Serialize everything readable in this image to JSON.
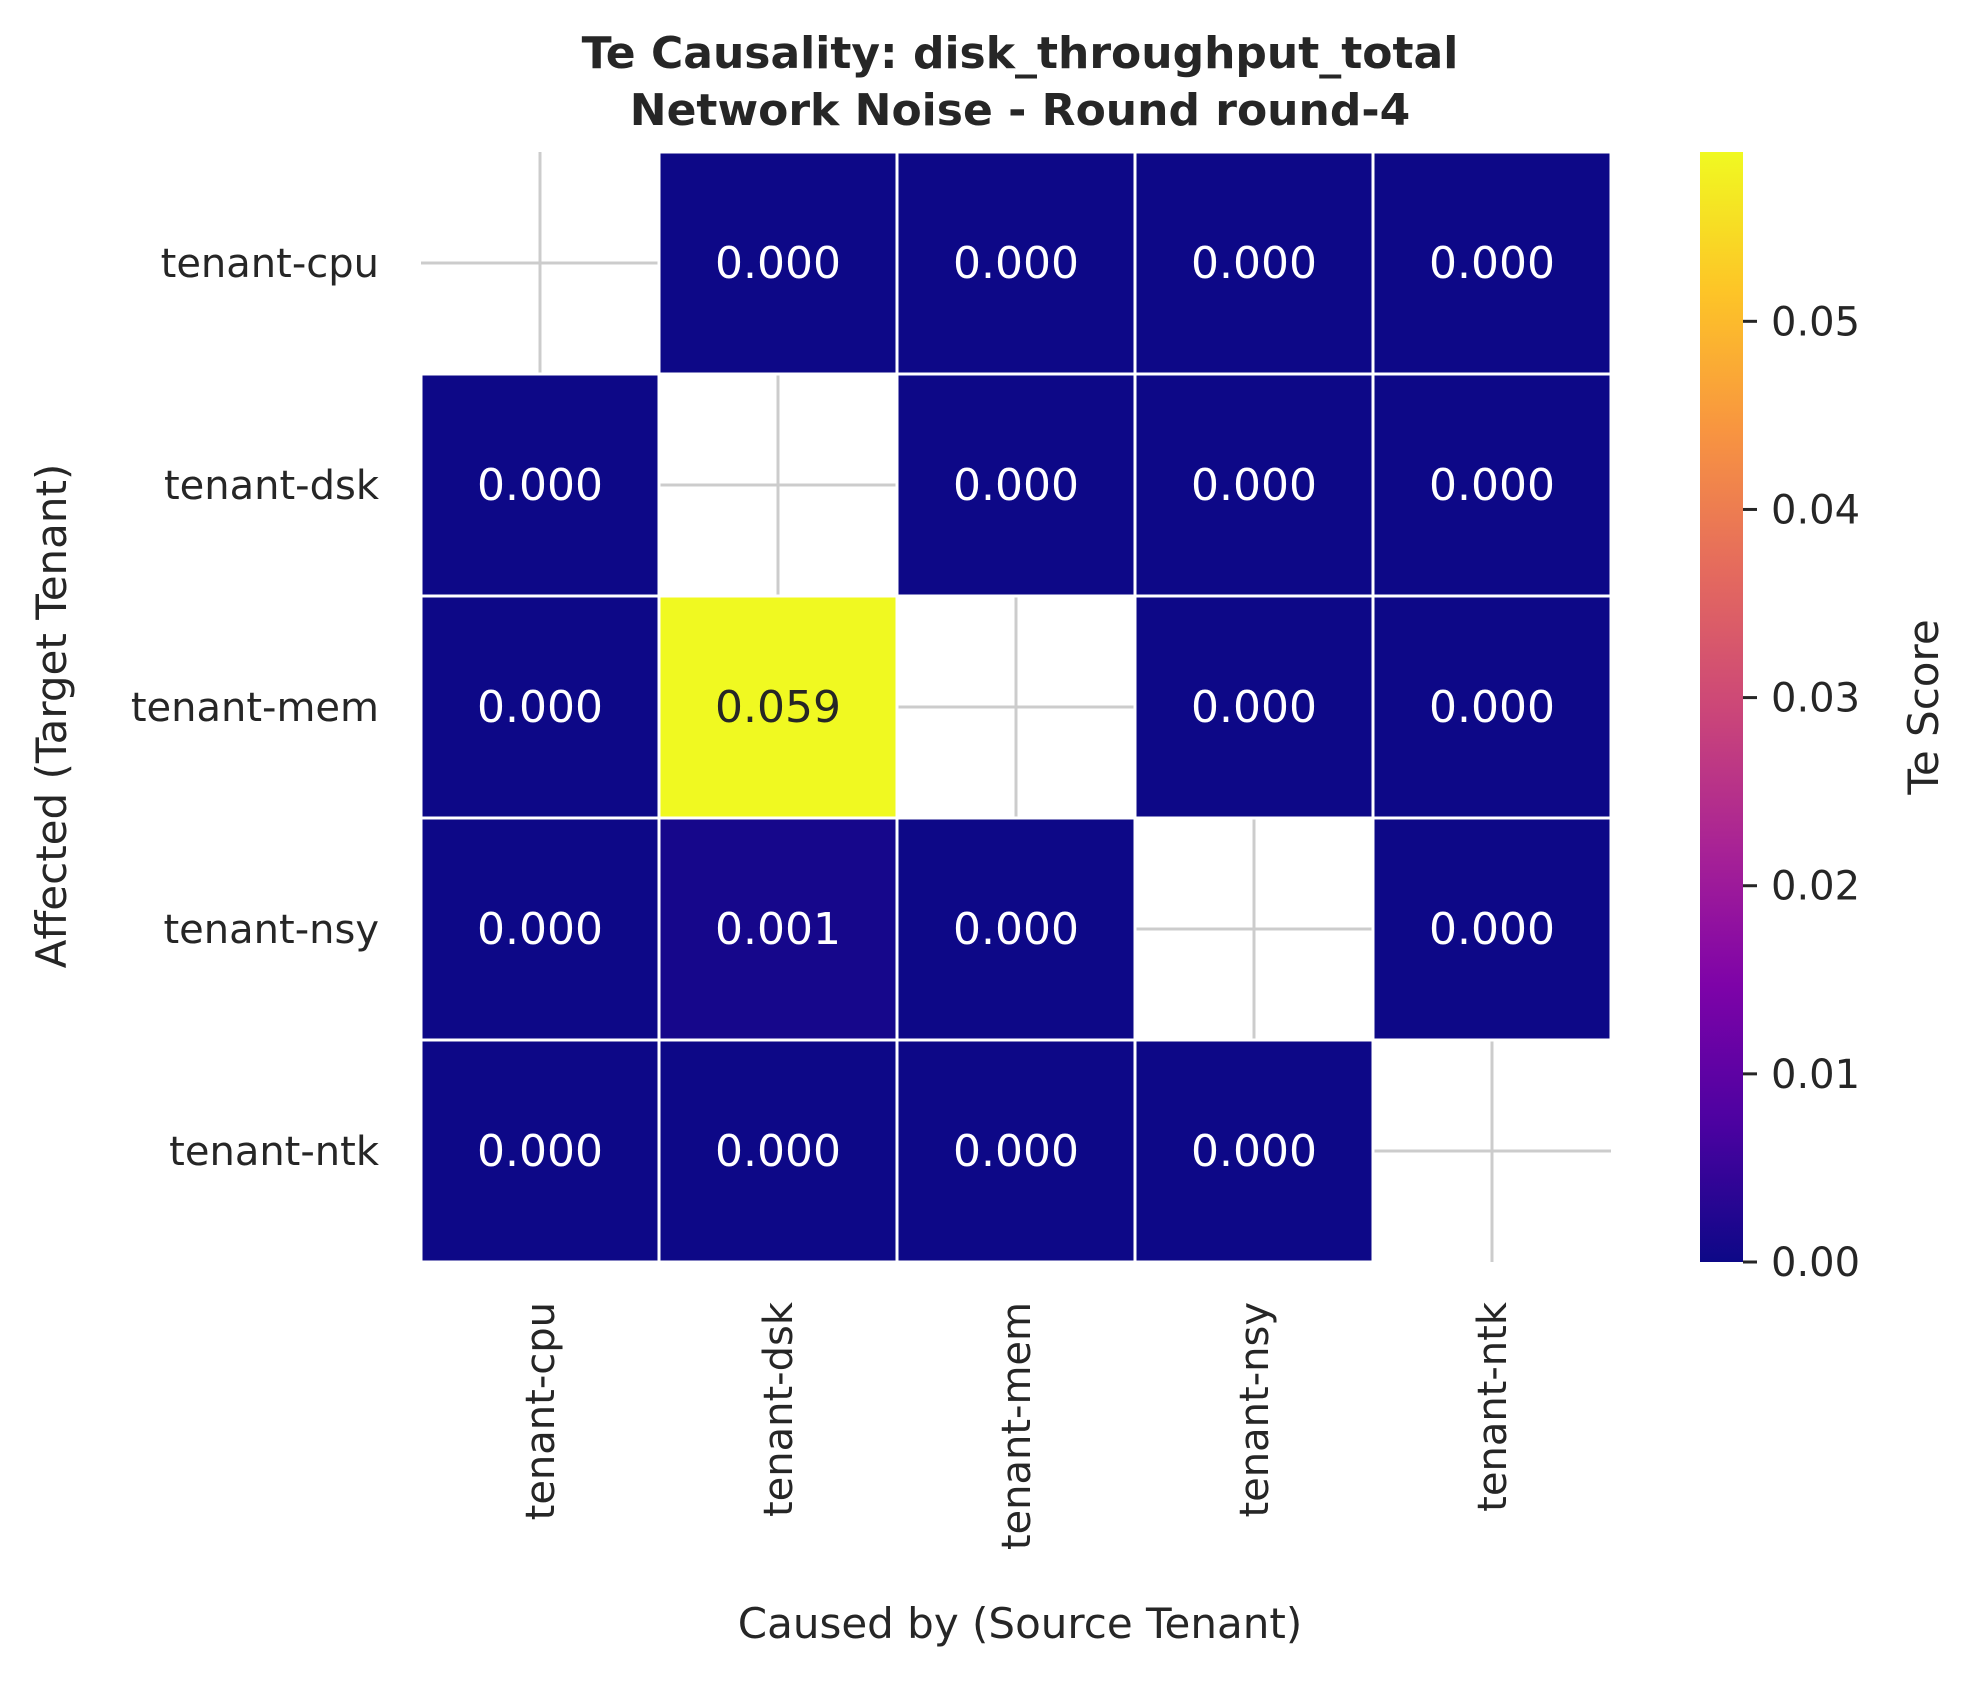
{
  "chart_data": {
    "type": "heatmap",
    "title": "Te Causality: disk_throughput_total",
    "subtitle": "Network Noise - Round round-4",
    "xlabel": "Caused by (Source Tenant)",
    "ylabel": "Affected (Target Tenant)",
    "x_categories": [
      "tenant-cpu",
      "tenant-dsk",
      "tenant-mem",
      "tenant-nsy",
      "tenant-ntk"
    ],
    "y_categories": [
      "tenant-cpu",
      "tenant-dsk",
      "tenant-mem",
      "tenant-nsy",
      "tenant-ntk"
    ],
    "values": [
      [
        null,
        0.0,
        0.0,
        0.0,
        0.0
      ],
      [
        0.0,
        null,
        0.0,
        0.0,
        0.0
      ],
      [
        0.0,
        0.059,
        null,
        0.0,
        0.0
      ],
      [
        0.0,
        0.001,
        0.0,
        null,
        0.0
      ],
      [
        0.0,
        0.0,
        0.0,
        0.0,
        null
      ]
    ],
    "cell_labels": [
      [
        "",
        "0.000",
        "0.000",
        "0.000",
        "0.000"
      ],
      [
        "0.000",
        "",
        "0.000",
        "0.000",
        "0.000"
      ],
      [
        "0.000",
        "0.059",
        "",
        "0.000",
        "0.000"
      ],
      [
        "0.000",
        "0.001",
        "0.000",
        "",
        "0.000"
      ],
      [
        "0.000",
        "0.000",
        "0.000",
        "0.000",
        ""
      ]
    ],
    "colorbar": {
      "label": "Te Score",
      "range": [
        0.0,
        0.059
      ],
      "ticks": [
        0.0,
        0.01,
        0.02,
        0.03,
        0.04,
        0.05
      ],
      "tick_labels": [
        "0.00",
        "0.01",
        "0.02",
        "0.03",
        "0.04",
        "0.05"
      ],
      "colormap": "plasma"
    },
    "grid": true
  },
  "colors": {
    "cell_low": "#0d0887",
    "cell_high": "#f0f921",
    "grid_line": "#cccccc",
    "cell_border": "#ffffff",
    "text_dark": "#262626",
    "text_light": "#ffffff"
  }
}
